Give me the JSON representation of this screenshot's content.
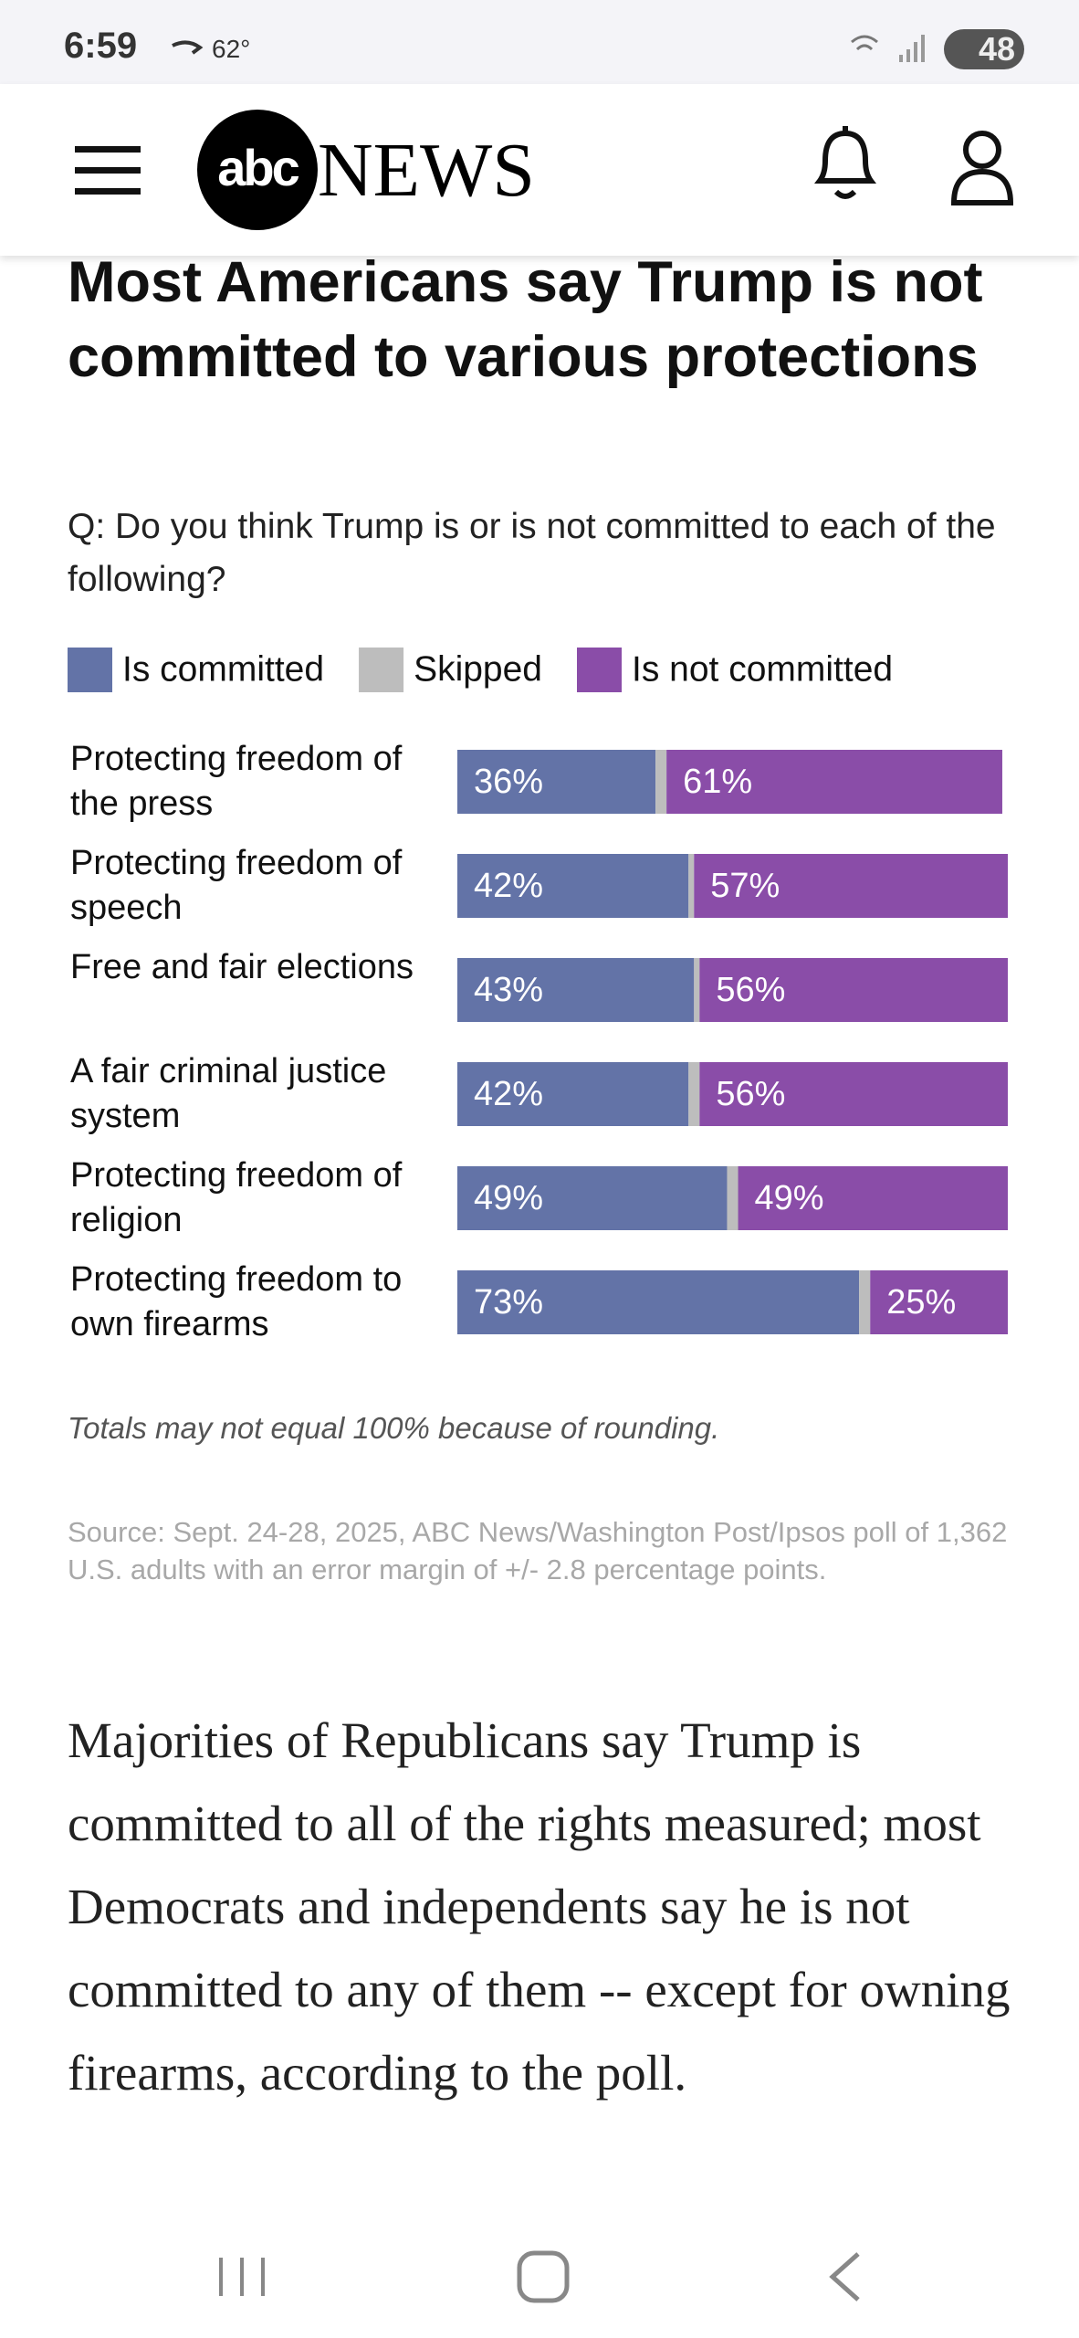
{
  "status_bar": {
    "time": "6:59",
    "temperature": "62°",
    "battery": "48"
  },
  "header": {
    "logo": "abc",
    "brand": "NEWS"
  },
  "chart_data": {
    "type": "bar",
    "stacked": true,
    "title": "Most Americans say Trump is not committed to various protections",
    "subtitle": "Q: Do you think Trump is or is not committed to each of the following?",
    "categories": [
      "Protecting freedom of the press",
      "Protecting freedom of speech",
      "Free and fair elections",
      "A fair criminal justice system",
      "Protecting freedom of religion",
      "Protecting freedom to own firearms"
    ],
    "series": [
      {
        "name": "Is committed",
        "color": "#6373a7",
        "values": [
          36,
          42,
          43,
          42,
          49,
          73
        ],
        "value_labels": [
          "36%",
          "42%",
          "43%",
          "42%",
          "49%",
          "73%"
        ]
      },
      {
        "name": "Skipped",
        "color": "#bdbdbd",
        "values": [
          2,
          1,
          1,
          2,
          2,
          2
        ]
      },
      {
        "name": "Is not committed",
        "color": "#8a4da8",
        "values": [
          61,
          57,
          56,
          56,
          49,
          25
        ],
        "value_labels": [
          "61%",
          "57%",
          "56%",
          "56%",
          "49%",
          "25%"
        ]
      }
    ],
    "xlim": [
      0,
      100
    ],
    "note": "Totals may not equal 100% because of rounding.",
    "source": "Source: Sept. 24-28, 2025, ABC News/Washington Post/Ipsos poll of 1,362 U.S. adults with an error margin of +/- 2.8 percentage points."
  },
  "article": {
    "paragraph": "Majorities of Republicans say Trump is committed to all of the rights measured; most Democrats and independents say he is not committed to any of them -- except for owning firearms, according to the poll."
  }
}
